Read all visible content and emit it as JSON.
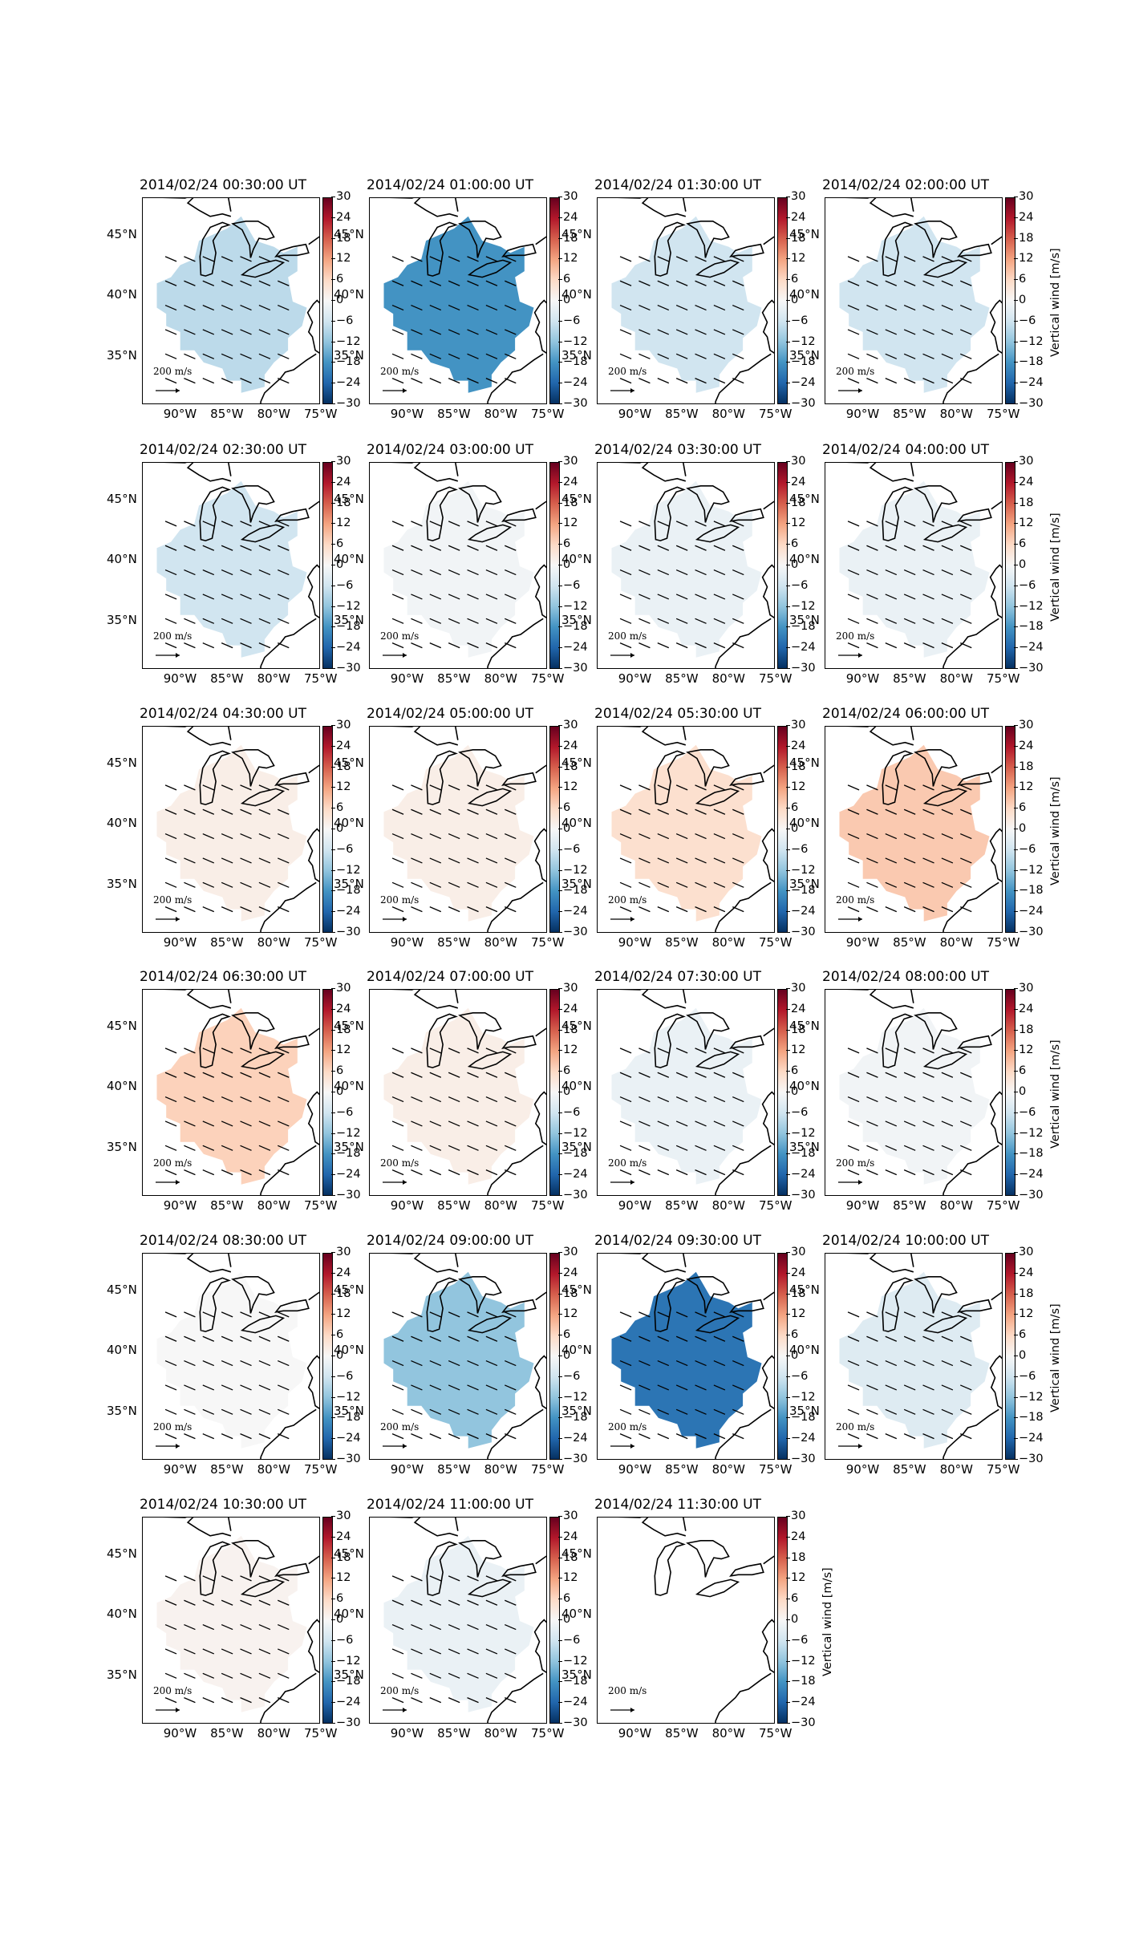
{
  "figure": {
    "colorbar_label": "Vertical wind [m/s]",
    "colorbar_ticks": [
      "30",
      "24",
      "18",
      "12",
      "6",
      "0",
      "−6",
      "−12",
      "−18",
      "−24",
      "−30"
    ],
    "colorbar_range": [
      -30,
      30
    ],
    "colormap": "RdBu_r",
    "lat_labels": [
      "45°N",
      "40°N",
      "35°N"
    ],
    "lon_labels": [
      "90°W",
      "85°W",
      "80°W",
      "75°W"
    ],
    "scale_label": "200 m/s",
    "land_outline": "black coastlines and Great Lakes, eastern United States"
  },
  "panels": [
    {
      "title": "2014/02/24 00:30:00 UT",
      "mean_w": -8
    },
    {
      "title": "2014/02/24 01:00:00 UT",
      "mean_w": -18
    },
    {
      "title": "2014/02/24 01:30:00 UT",
      "mean_w": -6
    },
    {
      "title": "2014/02/24 02:00:00 UT",
      "mean_w": -6
    },
    {
      "title": "2014/02/24 02:30:00 UT",
      "mean_w": -6
    },
    {
      "title": "2014/02/24 03:00:00 UT",
      "mean_w": -1
    },
    {
      "title": "2014/02/24 03:30:00 UT",
      "mean_w": -2
    },
    {
      "title": "2014/02/24 04:00:00 UT",
      "mean_w": -2
    },
    {
      "title": "2014/02/24 04:30:00 UT",
      "mean_w": 2
    },
    {
      "title": "2014/02/24 05:00:00 UT",
      "mean_w": 2
    },
    {
      "title": "2014/02/24 05:30:00 UT",
      "mean_w": 5
    },
    {
      "title": "2014/02/24 06:00:00 UT",
      "mean_w": 8
    },
    {
      "title": "2014/02/24 06:30:00 UT",
      "mean_w": 7
    },
    {
      "title": "2014/02/24 07:00:00 UT",
      "mean_w": 2
    },
    {
      "title": "2014/02/24 07:30:00 UT",
      "mean_w": -2
    },
    {
      "title": "2014/02/24 08:00:00 UT",
      "mean_w": -1
    },
    {
      "title": "2014/02/24 08:30:00 UT",
      "mean_w": 0
    },
    {
      "title": "2014/02/24 09:00:00 UT",
      "mean_w": -12
    },
    {
      "title": "2014/02/24 09:30:00 UT",
      "mean_w": -22
    },
    {
      "title": "2014/02/24 10:00:00 UT",
      "mean_w": -4
    },
    {
      "title": "2014/02/24 10:30:00 UT",
      "mean_w": 1
    },
    {
      "title": "2014/02/24 11:00:00 UT",
      "mean_w": -2
    },
    {
      "title": "2014/02/24 11:30:00 UT",
      "mean_w": null
    }
  ]
}
